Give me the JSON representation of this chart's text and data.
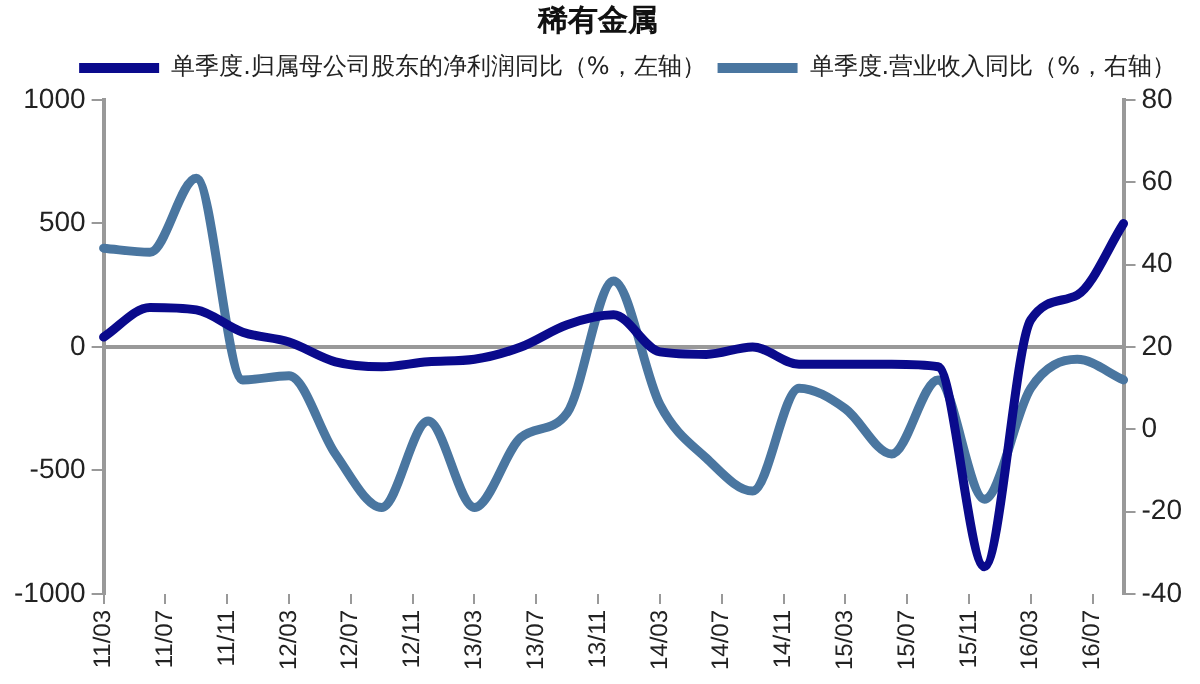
{
  "chart_data": {
    "type": "line",
    "title": "稀有金属",
    "categories": [
      "11/03",
      null,
      null,
      null,
      "11/07",
      null,
      null,
      null,
      "11/11",
      null,
      null,
      null,
      "12/03",
      null,
      null,
      null,
      "12/07",
      null,
      null,
      null,
      "12/11",
      null,
      null,
      null,
      "13/03",
      null,
      null,
      null,
      "13/07",
      null,
      null,
      null,
      "13/11",
      null,
      null,
      null,
      "14/03",
      null,
      null,
      null,
      "14/07",
      null,
      null,
      null,
      "14/11",
      null,
      null,
      null,
      "15/03",
      null,
      null,
      null,
      "15/07",
      null,
      null,
      null,
      "15/11",
      null,
      null,
      null,
      "16/03",
      null,
      null,
      null,
      "16/07",
      null,
      null
    ],
    "series": [
      {
        "name": "单季度.归属母公司股东的净利润同比（%，左轴）",
        "color": "#0a0a8c",
        "axis": "y",
        "values": [
          40,
          null,
          null,
          160,
          null,
          null,
          150,
          null,
          null,
          60,
          null,
          null,
          20,
          null,
          null,
          -60,
          null,
          null,
          -80,
          null,
          null,
          -60,
          null,
          null,
          -50,
          null,
          null,
          0,
          null,
          null,
          90,
          null,
          null,
          130,
          null,
          null,
          -20,
          null,
          null,
          -30,
          null,
          null,
          0,
          null,
          null,
          -70,
          null,
          null,
          -70,
          null,
          null,
          -70,
          null,
          null,
          -80,
          null,
          null,
          -890,
          null,
          null,
          110,
          null,
          null,
          210,
          null,
          null,
          500
        ]
      },
      {
        "name": "单季度.营业收入同比（%，右轴）",
        "color": "#4a76a0",
        "axis": "y2",
        "values": [
          44,
          null,
          null,
          43,
          null,
          null,
          61,
          null,
          null,
          12,
          null,
          null,
          13,
          null,
          null,
          -6,
          null,
          null,
          -19,
          null,
          null,
          2,
          null,
          null,
          -19,
          null,
          null,
          -2,
          null,
          null,
          4,
          null,
          null,
          36,
          null,
          null,
          6,
          null,
          null,
          -7,
          null,
          null,
          -15,
          null,
          null,
          10,
          null,
          null,
          5,
          null,
          null,
          -6,
          null,
          null,
          12,
          null,
          null,
          -17,
          null,
          null,
          10,
          null,
          null,
          17,
          null,
          null,
          12
        ]
      }
    ],
    "ylim": [
      -1000,
      1000
    ],
    "yticks": [
      -1000,
      -500,
      0,
      500,
      1000
    ],
    "y2lim": [
      -40,
      80
    ],
    "y2ticks": [
      -40,
      -20,
      0,
      20,
      40,
      60,
      80
    ],
    "ref_lines": [
      {
        "axis": "y",
        "value": 0
      }
    ],
    "grid": false,
    "legend": "top",
    "marker": "none",
    "line_style": "solid"
  }
}
